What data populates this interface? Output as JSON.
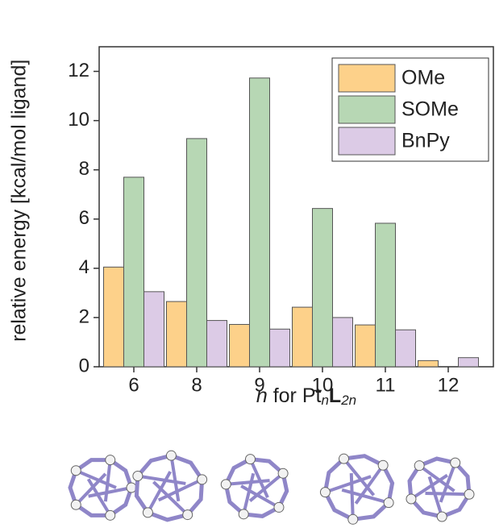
{
  "chart_data": {
    "type": "bar",
    "y_label": "relative energy [kcal/mol ligand]",
    "x_label": [
      "n",
      " for Pt",
      "n",
      "L",
      "2n"
    ],
    "categories": [
      "6",
      "8",
      "9",
      "10",
      "11",
      "12"
    ],
    "series": [
      {
        "name": "OMe",
        "color": "#fdd18a",
        "values": [
          4.05,
          2.65,
          1.72,
          2.42,
          1.7,
          0.25
        ]
      },
      {
        "name": "SOMe",
        "color": "#b7d7b4",
        "values": [
          7.7,
          9.27,
          11.73,
          6.43,
          5.83,
          null
        ]
      },
      {
        "name": "BnPy",
        "color": "#dccbe6",
        "values": [
          3.05,
          1.88,
          1.53,
          2.0,
          1.5,
          0.37
        ]
      }
    ],
    "ylim": [
      0,
      13
    ],
    "yticks": [
      0,
      2,
      4,
      6,
      8,
      10,
      12
    ],
    "grid": false,
    "legend": "top-right"
  }
}
